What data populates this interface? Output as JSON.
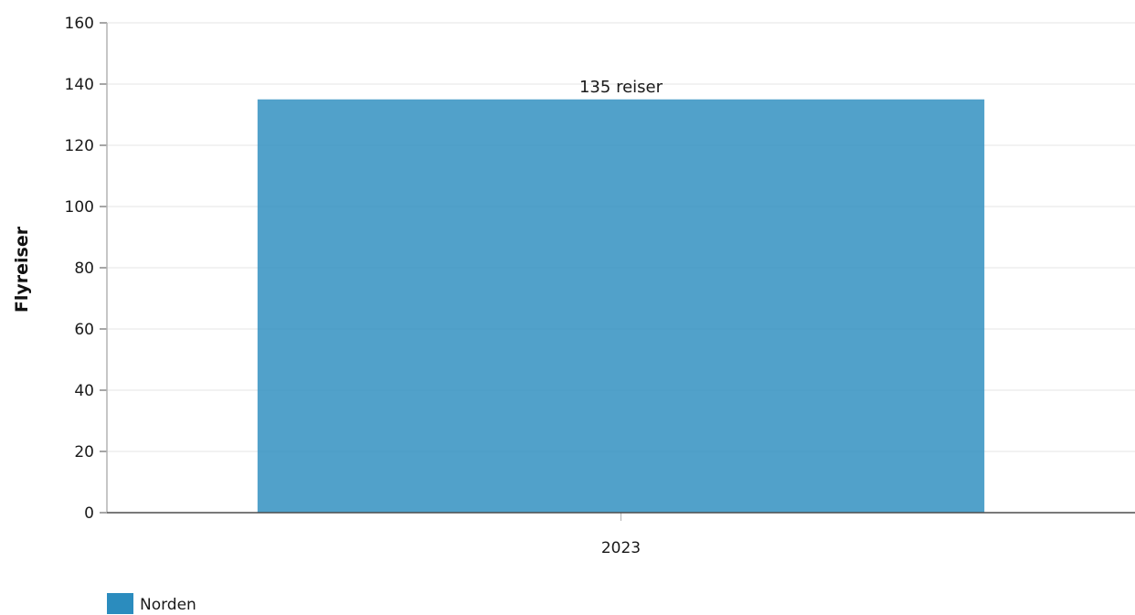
{
  "chart_data": {
    "type": "bar",
    "categories": [
      "2023"
    ],
    "series": [
      {
        "name": "Norden",
        "values": [
          135
        ],
        "data_labels": [
          "135 reiser"
        ],
        "color": "#2b8cbe"
      }
    ],
    "ylabel": "Flyreiser",
    "xlabel": "",
    "ylim": [
      0,
      160
    ],
    "yticks": [
      0,
      20,
      40,
      60,
      80,
      100,
      120,
      140,
      160
    ],
    "grid": true,
    "legend_position": "bottom-left"
  },
  "colors": {
    "bar": "#2b8cbe",
    "grid": "#e6e6e6",
    "axis": "#4d4d4d"
  }
}
